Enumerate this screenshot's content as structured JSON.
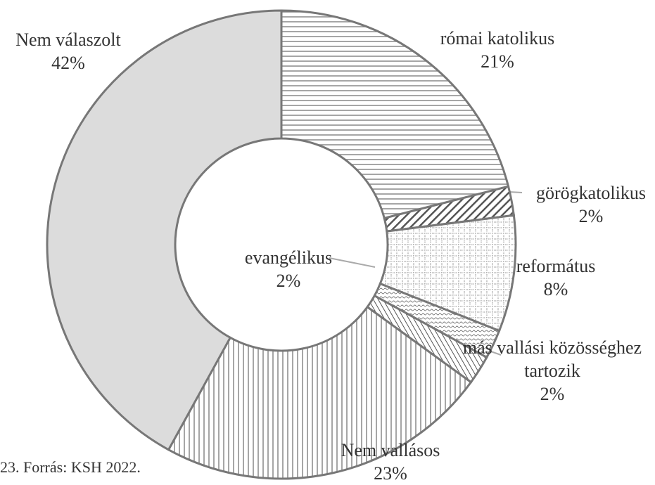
{
  "chart_data": {
    "type": "donut",
    "categories": [
      "római katolikus",
      "görögkatolikus",
      "református",
      "evangélikus",
      "más vallási közösséghez tartozik",
      "Nem vallásos",
      "Nem válaszolt"
    ],
    "values": [
      21,
      2,
      8,
      2,
      2,
      23,
      42
    ],
    "value_labels": [
      "21%",
      "2%",
      "8%",
      "2%",
      "2%",
      "23%",
      "42%"
    ],
    "note": "23. Forrás: KSH 2022."
  }
}
